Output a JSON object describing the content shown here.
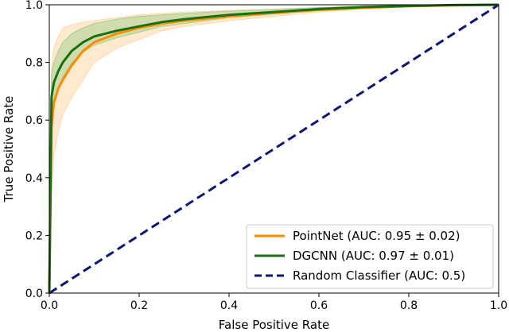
{
  "chart_data": {
    "type": "line",
    "title": "",
    "xlabel": "False Positive Rate",
    "ylabel": "True Positive Rate",
    "xlim": [
      0,
      1
    ],
    "ylim": [
      0,
      1
    ],
    "xticks": [
      0.0,
      0.2,
      0.4,
      0.6,
      0.8,
      1.0
    ],
    "yticks": [
      0.0,
      0.2,
      0.4,
      0.6,
      0.8,
      1.0
    ],
    "xtick_labels": [
      "0.0",
      "0.2",
      "0.4",
      "0.6",
      "0.8",
      "1.0"
    ],
    "ytick_labels": [
      "0.0",
      "0.2",
      "0.4",
      "0.6",
      "0.8",
      "1.0"
    ],
    "grid": false,
    "legend_position": "bottom-right",
    "series": [
      {
        "name": "PointNet (AUC: 0.95 ± 0.02)",
        "color": "#ff8c00",
        "band_color": "#ffd9a8",
        "x": [
          0,
          0.005,
          0.01,
          0.02,
          0.03,
          0.05,
          0.075,
          0.1,
          0.15,
          0.2,
          0.25,
          0.3,
          0.4,
          0.5,
          0.6,
          0.7,
          0.8,
          0.9,
          1.0
        ],
        "y": [
          0,
          0.58,
          0.66,
          0.71,
          0.74,
          0.79,
          0.84,
          0.87,
          0.9,
          0.92,
          0.935,
          0.945,
          0.96,
          0.972,
          0.982,
          0.99,
          0.995,
          0.998,
          1.0
        ],
        "lower": [
          0,
          0.35,
          0.48,
          0.56,
          0.62,
          0.68,
          0.74,
          0.8,
          0.85,
          0.88,
          0.91,
          0.925,
          0.945,
          0.96,
          0.975,
          0.985,
          0.992,
          0.997,
          1.0
        ],
        "upper": [
          0,
          0.78,
          0.85,
          0.89,
          0.92,
          0.93,
          0.94,
          0.945,
          0.955,
          0.965,
          0.97,
          0.975,
          0.98,
          0.985,
          0.99,
          0.995,
          0.998,
          1.0,
          1.0
        ]
      },
      {
        "name": "DGCNN (AUC: 0.97 ± 0.01)",
        "color": "#1a6e14",
        "band_color": "#a9cf8f",
        "x": [
          0,
          0.005,
          0.01,
          0.02,
          0.03,
          0.05,
          0.075,
          0.1,
          0.15,
          0.2,
          0.25,
          0.3,
          0.4,
          0.5,
          0.6,
          0.7,
          0.8,
          0.9,
          1.0
        ],
        "y": [
          0,
          0.68,
          0.73,
          0.77,
          0.8,
          0.84,
          0.87,
          0.89,
          0.91,
          0.925,
          0.94,
          0.95,
          0.965,
          0.975,
          0.985,
          0.992,
          0.996,
          0.999,
          1.0
        ],
        "lower": [
          0,
          0.6,
          0.66,
          0.71,
          0.75,
          0.8,
          0.835,
          0.86,
          0.885,
          0.905,
          0.925,
          0.935,
          0.955,
          0.968,
          0.98,
          0.988,
          0.993,
          0.997,
          1.0
        ],
        "upper": [
          0,
          0.76,
          0.8,
          0.84,
          0.87,
          0.9,
          0.92,
          0.935,
          0.95,
          0.96,
          0.965,
          0.97,
          0.978,
          0.984,
          0.99,
          0.995,
          0.998,
          1.0,
          1.0
        ]
      },
      {
        "name": "Random Classifier (AUC: 0.5)",
        "color": "#0b1572",
        "dashed": true,
        "x": [
          0,
          1
        ],
        "y": [
          0,
          1
        ]
      }
    ]
  }
}
